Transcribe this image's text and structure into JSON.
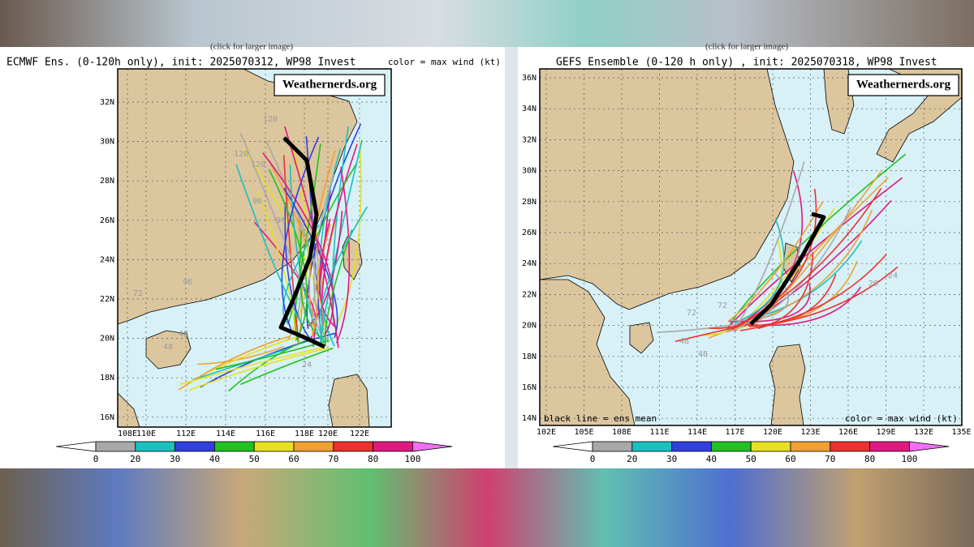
{
  "panels": [
    {
      "caption": "(click for larger image)",
      "title": "ECMWF Ens. (0-120h only), init: 2025070312, WP98 Invest",
      "wind_note": "color = max wind (kt)",
      "watermark": "Weathernerds.org",
      "lat_labels": [
        "32N",
        "30N",
        "28N",
        "26N",
        "24N",
        "22N",
        "20N",
        "18N",
        "16N"
      ],
      "lon_labels": [
        "108E",
        "110E",
        "112E",
        "114E",
        "116E",
        "118E",
        "120E",
        "122E"
      ],
      "track_labels": [
        "120",
        "120",
        "120",
        "96",
        "96",
        "96",
        "72",
        "48",
        "48",
        "24"
      ],
      "colorbar_labels": [
        0,
        20,
        30,
        40,
        50,
        60,
        70,
        80,
        100
      ]
    },
    {
      "caption": "(click for larger image)",
      "title": "GEFS Ensemble (0-120 h only) , init: 2025070318, WP98 Invest",
      "mean_note": "black line = ens mean",
      "wind_note": "color = max wind (kt)",
      "watermark": "Weathernerds.org",
      "lat_labels": [
        "36N",
        "34N",
        "32N",
        "30N",
        "28N",
        "26N",
        "24N",
        "22N",
        "20N",
        "18N",
        "16N",
        "14N"
      ],
      "lon_labels": [
        "102E",
        "105E",
        "108E",
        "111E",
        "114E",
        "117E",
        "120E",
        "123E",
        "126E",
        "129E",
        "132E",
        "135E"
      ],
      "track_labels": [
        "72",
        "72",
        "48",
        "48",
        "20",
        "24"
      ],
      "colorbar_labels": [
        0,
        20,
        30,
        40,
        50,
        60,
        70,
        80,
        100
      ]
    }
  ]
}
